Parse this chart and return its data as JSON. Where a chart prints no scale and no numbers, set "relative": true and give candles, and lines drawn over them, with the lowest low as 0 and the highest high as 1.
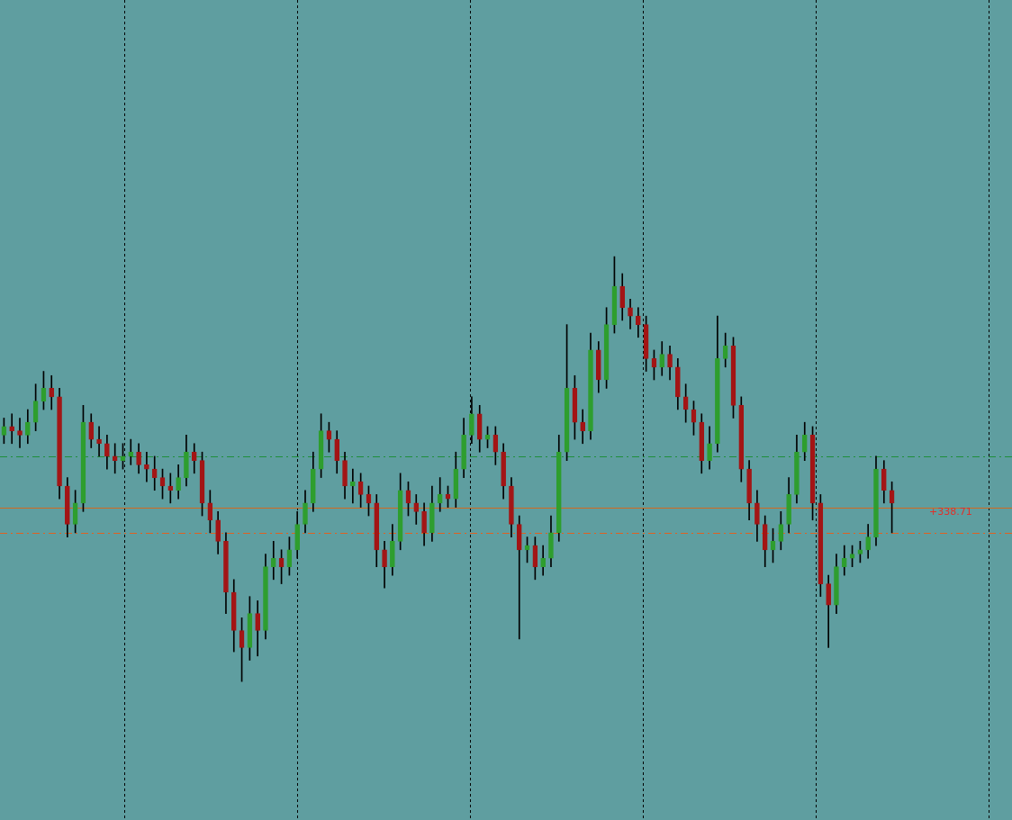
{
  "chart_data": {
    "type": "candlestick",
    "relative": true,
    "categories": [
      null,
      null,
      null,
      null,
      null,
      null,
      null,
      null,
      null,
      null,
      null,
      null,
      null,
      null,
      null,
      null,
      null,
      null,
      null,
      null,
      null,
      null,
      null,
      null,
      null,
      null,
      null,
      null,
      null,
      null,
      null,
      null,
      null,
      null,
      null,
      null,
      null,
      null,
      null,
      null,
      null,
      null,
      null,
      null,
      null,
      null,
      null,
      null,
      null,
      null,
      null,
      null,
      null,
      null,
      null,
      null,
      null,
      null,
      null,
      null,
      null,
      null,
      null,
      null,
      null,
      null,
      null,
      null,
      null,
      null,
      null,
      null,
      null,
      null,
      null,
      null,
      null,
      null,
      null,
      null,
      null,
      null,
      null,
      null,
      null,
      null,
      null,
      null,
      null,
      null,
      null,
      null,
      null,
      null,
      null,
      null,
      null,
      null,
      null,
      null,
      null,
      null,
      null,
      null,
      null,
      null,
      null,
      null,
      null,
      null,
      null,
      null,
      null
    ],
    "ohlc": [
      [
        0.58,
        0.62,
        0.56,
        0.6
      ],
      [
        0.6,
        0.63,
        0.56,
        0.59
      ],
      [
        0.59,
        0.62,
        0.55,
        0.58
      ],
      [
        0.58,
        0.64,
        0.56,
        0.61
      ],
      [
        0.61,
        0.7,
        0.59,
        0.66
      ],
      [
        0.66,
        0.73,
        0.64,
        0.69
      ],
      [
        0.69,
        0.72,
        0.64,
        0.67
      ],
      [
        0.67,
        0.69,
        0.43,
        0.46
      ],
      [
        0.46,
        0.48,
        0.34,
        0.37
      ],
      [
        0.37,
        0.45,
        0.35,
        0.42
      ],
      [
        0.42,
        0.65,
        0.4,
        0.61
      ],
      [
        0.61,
        0.63,
        0.55,
        0.57
      ],
      [
        0.57,
        0.6,
        0.53,
        0.56
      ],
      [
        0.56,
        0.58,
        0.5,
        0.53
      ],
      [
        0.53,
        0.56,
        0.49,
        0.52
      ],
      [
        0.52,
        0.56,
        0.5,
        0.53
      ],
      [
        0.53,
        0.57,
        0.51,
        0.54
      ],
      [
        0.54,
        0.56,
        0.49,
        0.51
      ],
      [
        0.51,
        0.54,
        0.47,
        0.5
      ],
      [
        0.5,
        0.53,
        0.45,
        0.48
      ],
      [
        0.48,
        0.5,
        0.43,
        0.46
      ],
      [
        0.46,
        0.49,
        0.42,
        0.45
      ],
      [
        0.45,
        0.51,
        0.43,
        0.48
      ],
      [
        0.48,
        0.58,
        0.46,
        0.54
      ],
      [
        0.54,
        0.56,
        0.49,
        0.52
      ],
      [
        0.52,
        0.54,
        0.39,
        0.42
      ],
      [
        0.42,
        0.45,
        0.35,
        0.38
      ],
      [
        0.38,
        0.4,
        0.3,
        0.33
      ],
      [
        0.33,
        0.35,
        0.16,
        0.21
      ],
      [
        0.21,
        0.24,
        0.07,
        0.12
      ],
      [
        0.12,
        0.15,
        0.0,
        0.08
      ],
      [
        0.08,
        0.2,
        0.05,
        0.16
      ],
      [
        0.16,
        0.19,
        0.06,
        0.12
      ],
      [
        0.12,
        0.3,
        0.1,
        0.27
      ],
      [
        0.27,
        0.33,
        0.24,
        0.29
      ],
      [
        0.29,
        0.31,
        0.23,
        0.27
      ],
      [
        0.27,
        0.34,
        0.25,
        0.31
      ],
      [
        0.31,
        0.4,
        0.29,
        0.37
      ],
      [
        0.37,
        0.45,
        0.35,
        0.42
      ],
      [
        0.42,
        0.54,
        0.4,
        0.5
      ],
      [
        0.5,
        0.63,
        0.48,
        0.59
      ],
      [
        0.59,
        0.61,
        0.54,
        0.57
      ],
      [
        0.57,
        0.59,
        0.49,
        0.52
      ],
      [
        0.52,
        0.54,
        0.43,
        0.46
      ],
      [
        0.46,
        0.5,
        0.42,
        0.47
      ],
      [
        0.47,
        0.49,
        0.41,
        0.44
      ],
      [
        0.44,
        0.46,
        0.39,
        0.42
      ],
      [
        0.42,
        0.44,
        0.27,
        0.31
      ],
      [
        0.31,
        0.33,
        0.22,
        0.27
      ],
      [
        0.27,
        0.37,
        0.25,
        0.33
      ],
      [
        0.33,
        0.49,
        0.31,
        0.45
      ],
      [
        0.45,
        0.47,
        0.39,
        0.42
      ],
      [
        0.42,
        0.44,
        0.37,
        0.4
      ],
      [
        0.4,
        0.42,
        0.32,
        0.35
      ],
      [
        0.35,
        0.46,
        0.33,
        0.42
      ],
      [
        0.42,
        0.48,
        0.4,
        0.44
      ],
      [
        0.44,
        0.46,
        0.41,
        0.43
      ],
      [
        0.43,
        0.54,
        0.41,
        0.5
      ],
      [
        0.5,
        0.62,
        0.48,
        0.58
      ],
      [
        0.58,
        0.67,
        0.56,
        0.63
      ],
      [
        0.63,
        0.65,
        0.54,
        0.57
      ],
      [
        0.57,
        0.6,
        0.55,
        0.58
      ],
      [
        0.58,
        0.6,
        0.51,
        0.54
      ],
      [
        0.54,
        0.56,
        0.43,
        0.46
      ],
      [
        0.46,
        0.48,
        0.34,
        0.37
      ],
      [
        0.37,
        0.39,
        0.1,
        0.31
      ],
      [
        0.31,
        0.34,
        0.28,
        0.32
      ],
      [
        0.32,
        0.34,
        0.24,
        0.27
      ],
      [
        0.27,
        0.32,
        0.25,
        0.29
      ],
      [
        0.29,
        0.39,
        0.27,
        0.35
      ],
      [
        0.35,
        0.58,
        0.33,
        0.54
      ],
      [
        0.54,
        0.84,
        0.52,
        0.69
      ],
      [
        0.69,
        0.72,
        0.57,
        0.61
      ],
      [
        0.61,
        0.64,
        0.56,
        0.59
      ],
      [
        0.59,
        0.82,
        0.57,
        0.78
      ],
      [
        0.78,
        0.8,
        0.68,
        0.71
      ],
      [
        0.71,
        0.88,
        0.69,
        0.84
      ],
      [
        0.84,
        1.0,
        0.82,
        0.93
      ],
      [
        0.93,
        0.96,
        0.85,
        0.88
      ],
      [
        0.88,
        0.9,
        0.83,
        0.86
      ],
      [
        0.86,
        0.88,
        0.81,
        0.84
      ],
      [
        0.84,
        0.86,
        0.73,
        0.76
      ],
      [
        0.76,
        0.78,
        0.71,
        0.74
      ],
      [
        0.74,
        0.8,
        0.72,
        0.77
      ],
      [
        0.77,
        0.79,
        0.71,
        0.74
      ],
      [
        0.74,
        0.76,
        0.64,
        0.67
      ],
      [
        0.67,
        0.7,
        0.61,
        0.64
      ],
      [
        0.64,
        0.66,
        0.58,
        0.61
      ],
      [
        0.61,
        0.63,
        0.49,
        0.52
      ],
      [
        0.52,
        0.6,
        0.5,
        0.56
      ],
      [
        0.56,
        0.86,
        0.54,
        0.76
      ],
      [
        0.76,
        0.82,
        0.74,
        0.79
      ],
      [
        0.79,
        0.81,
        0.62,
        0.65
      ],
      [
        0.65,
        0.67,
        0.47,
        0.5
      ],
      [
        0.5,
        0.52,
        0.38,
        0.42
      ],
      [
        0.42,
        0.45,
        0.33,
        0.37
      ],
      [
        0.37,
        0.39,
        0.27,
        0.31
      ],
      [
        0.31,
        0.36,
        0.28,
        0.33
      ],
      [
        0.33,
        0.4,
        0.31,
        0.37
      ],
      [
        0.37,
        0.48,
        0.35,
        0.44
      ],
      [
        0.44,
        0.58,
        0.42,
        0.54
      ],
      [
        0.54,
        0.61,
        0.52,
        0.58
      ],
      [
        0.58,
        0.6,
        0.38,
        0.42
      ],
      [
        0.42,
        0.44,
        0.2,
        0.23
      ],
      [
        0.23,
        0.25,
        0.08,
        0.18
      ],
      [
        0.18,
        0.3,
        0.16,
        0.27
      ],
      [
        0.27,
        0.32,
        0.25,
        0.29
      ],
      [
        0.29,
        0.32,
        0.27,
        0.3
      ],
      [
        0.3,
        0.33,
        0.28,
        0.31
      ],
      [
        0.31,
        0.37,
        0.29,
        0.34
      ],
      [
        0.34,
        0.53,
        0.32,
        0.5
      ],
      [
        0.5,
        0.52,
        0.42,
        0.45
      ],
      [
        0.45,
        0.47,
        0.35,
        0.42
      ]
    ],
    "annotations": [
      "+338.71"
    ],
    "ref_lines": [
      {
        "axis": "y",
        "value": 0.41,
        "color": "#d2691e",
        "line_style": "solid"
      },
      {
        "axis": "y",
        "value": 0.53,
        "color": "#1f8f3a",
        "line_style": "dashed"
      },
      {
        "axis": "y",
        "value": 0.35,
        "color": "#e06020",
        "line_style": "dashed"
      }
    ],
    "legend": false
  }
}
